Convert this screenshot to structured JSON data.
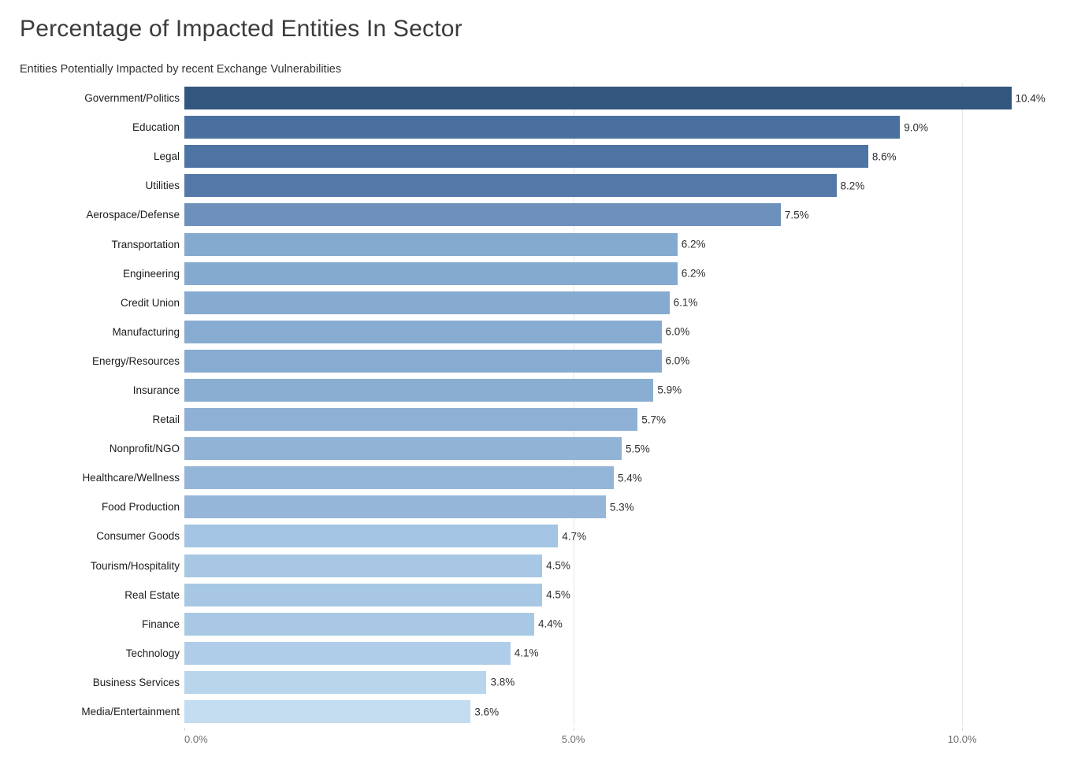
{
  "header": {
    "title": "Percentage of Impacted Entities In Sector",
    "subtitle": "Entities Potentially Impacted by recent Exchange Vulnerabilities"
  },
  "chart_data": {
    "type": "bar",
    "orientation": "horizontal",
    "title": "Percentage of Impacted Entities In Sector",
    "subtitle": "Entities Potentially Impacted by recent Exchange Vulnerabilities",
    "xlabel": "",
    "ylabel": "",
    "xlim": [
      0,
      10.9
    ],
    "grid": "vertical-light-behind-bars",
    "legend": "none",
    "value_suffix": "%",
    "categories": [
      "Government/Politics",
      "Education",
      "Legal",
      "Utilities",
      "Aerospace/Defense",
      "Transportation",
      "Engineering",
      "Credit Union",
      "Manufacturing",
      "Energy/Resources",
      "Insurance",
      "Retail",
      "Nonprofit/NGO",
      "Healthcare/Wellness",
      "Food Production",
      "Consumer Goods",
      "Tourism/Hospitality",
      "Real Estate",
      "Finance",
      "Technology",
      "Business Services",
      "Media/Entertainment"
    ],
    "values": [
      10.4,
      9.0,
      8.6,
      8.2,
      7.5,
      6.2,
      6.2,
      6.1,
      6.0,
      6.0,
      5.9,
      5.7,
      5.5,
      5.4,
      5.3,
      4.7,
      4.5,
      4.5,
      4.4,
      4.1,
      3.8,
      3.6
    ],
    "value_labels": [
      "10.4%",
      "9.0%",
      "8.6%",
      "8.2%",
      "7.5%",
      "6.2%",
      "6.2%",
      "6.1%",
      "6.0%",
      "6.0%",
      "5.9%",
      "5.7%",
      "5.5%",
      "5.4%",
      "5.3%",
      "4.7%",
      "4.5%",
      "4.5%",
      "4.4%",
      "4.1%",
      "3.8%",
      "3.6%"
    ],
    "bar_colors": [
      "#33567e",
      "#49709f",
      "#4d74a3",
      "#5479a8",
      "#6d91bb",
      "#85aacf",
      "#85aacf",
      "#87abd0",
      "#88acd1",
      "#88acd1",
      "#8aaed2",
      "#8db0d4",
      "#91b3d6",
      "#93b5d7",
      "#95b6d8",
      "#a3c4e2",
      "#a7c7e4",
      "#a7c7e4",
      "#a9c8e5",
      "#afcde8",
      "#b9d5ec",
      "#c3dcf0"
    ],
    "x_ticks": [
      {
        "value": 0,
        "label": "0.0%"
      },
      {
        "value": 5,
        "label": "5.0%"
      },
      {
        "value": 10,
        "label": "10.0%"
      }
    ]
  },
  "colors": {
    "background": "#ffffff",
    "title_text": "#3b3b3b",
    "subtitle_text": "#333333",
    "category_text": "#1c1c1c",
    "value_text": "#2e2e2e",
    "axis_tick_text": "#6e6e6e",
    "gridline": "#e7e7e7",
    "darkest_bar": "#33567e",
    "lightest_bar": "#c3dcf0"
  }
}
